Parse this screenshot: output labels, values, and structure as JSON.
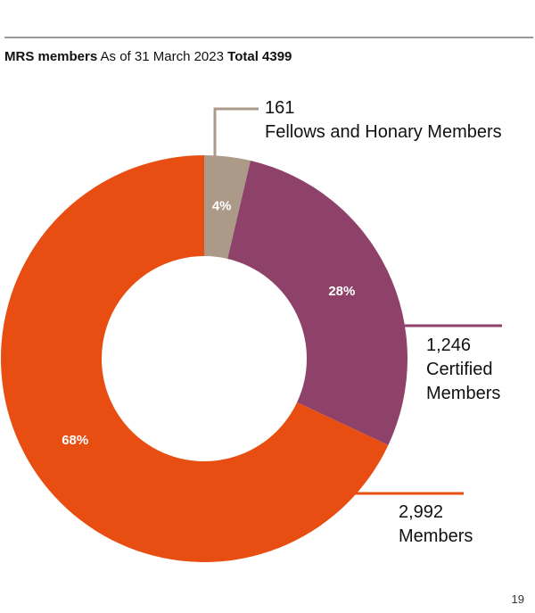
{
  "chart_data": {
    "type": "donut",
    "title": "MRS members",
    "subtitle": "As of 31 March 2023",
    "total_label": "Total 4399",
    "categories": [
      "Fellows and Honary Members",
      "Certified Members",
      "Members"
    ],
    "values": [
      161,
      1246,
      2992
    ],
    "value_labels": [
      "161",
      "1,246",
      "2,992"
    ],
    "percent_labels": [
      "4%",
      "28%",
      "68%"
    ],
    "colors": [
      "#ab9a88",
      "#8e4169",
      "#e84e12"
    ]
  },
  "page_number": "19"
}
